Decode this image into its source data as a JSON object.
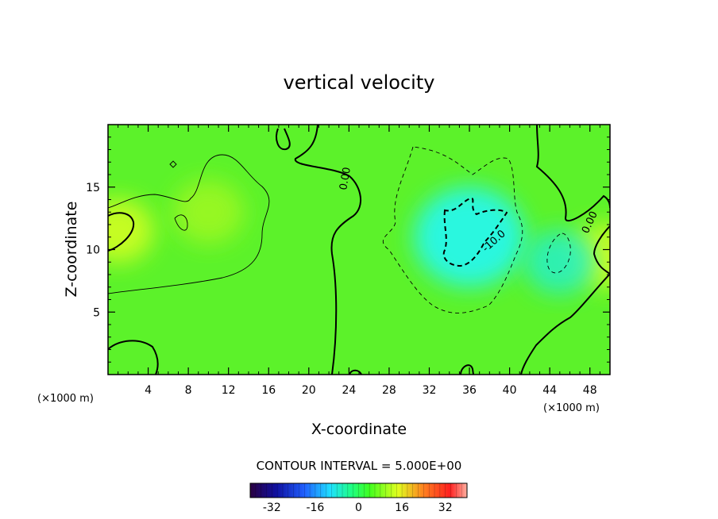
{
  "chart_data": {
    "type": "heatmap",
    "title": "vertical velocity",
    "xlabel": "X-coordinate",
    "ylabel": "Z-coordinate",
    "x_unit_note": "(×1000 m)",
    "y_unit_note": "(×1000 m)",
    "xlim": [
      0,
      50
    ],
    "ylim": [
      0,
      20
    ],
    "x_ticks": [
      4,
      8,
      12,
      16,
      20,
      24,
      28,
      32,
      36,
      40,
      44,
      48
    ],
    "y_ticks": [
      5,
      10,
      15
    ],
    "contour_interval_text": "CONTOUR INTERVAL = 5.000E+00",
    "contour_labels": [
      "0.00",
      "-10.0",
      "0.00"
    ],
    "colorbar": {
      "range": [
        -40,
        40
      ],
      "ticks": [
        -32,
        -16,
        0,
        16,
        32
      ],
      "colors": [
        "#2a0040",
        "#1010a0",
        "#2060ff",
        "#20e0ff",
        "#20ff80",
        "#40ff20",
        "#e0ff20",
        "#ff8020",
        "#ff2020",
        "#ffa0a0"
      ]
    },
    "field_features": [
      {
        "x": 36,
        "z": 11,
        "value": -12
      },
      {
        "x": 1,
        "z": 11.5,
        "value": 7
      },
      {
        "x": 49.5,
        "z": 9.5,
        "value": 8
      },
      {
        "x": 10,
        "z": 13,
        "value": 4
      },
      {
        "x": 45,
        "z": 9,
        "value": -6
      }
    ]
  }
}
